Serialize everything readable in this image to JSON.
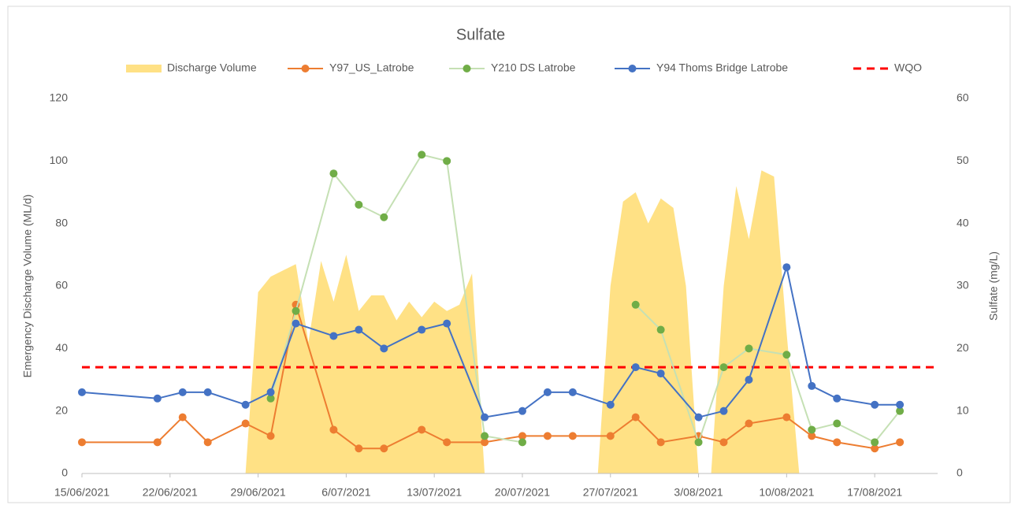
{
  "chart_data": {
    "type": "line",
    "title": "Sulfate",
    "y_label": "Emergency Discharge Volume (ML/d)",
    "y2_label": "Sulfate (mg/L)",
    "x": [
      "2021-06-15",
      "2021-06-21",
      "2021-06-23",
      "2021-06-25",
      "2021-06-28",
      "2021-06-30",
      "2021-07-02",
      "2021-07-05",
      "2021-07-07",
      "2021-07-09",
      "2021-07-12",
      "2021-07-14",
      "2021-07-17",
      "2021-07-20",
      "2021-07-22",
      "2021-07-24",
      "2021-07-27",
      "2021-07-29",
      "2021-07-31",
      "2021-08-03",
      "2021-08-05",
      "2021-08-07",
      "2021-08-10",
      "2021-08-12",
      "2021-08-14",
      "2021-08-17",
      "2021-08-19"
    ],
    "area": {
      "name": "Discharge Volume",
      "color": "#ffd966",
      "axis": "y",
      "x": [
        "2021-06-28",
        "2021-06-29",
        "2021-06-30",
        "2021-07-01",
        "2021-07-02",
        "2021-07-03",
        "2021-07-04",
        "2021-07-05",
        "2021-07-06",
        "2021-07-07",
        "2021-07-08",
        "2021-07-09",
        "2021-07-10",
        "2021-07-11",
        "2021-07-12",
        "2021-07-13",
        "2021-07-14",
        "2021-07-15",
        "2021-07-16",
        "2021-07-17",
        "2021-07-26",
        "2021-07-27",
        "2021-07-28",
        "2021-07-29",
        "2021-07-30",
        "2021-07-31",
        "2021-08-01",
        "2021-08-02",
        "2021-08-03",
        "2021-08-04",
        "2021-08-05",
        "2021-08-06",
        "2021-08-07",
        "2021-08-08",
        "2021-08-09",
        "2021-08-10",
        "2021-08-11"
      ],
      "values": [
        0,
        58,
        63,
        65,
        67,
        42,
        68,
        55,
        70,
        52,
        57,
        57,
        49,
        55,
        50,
        55,
        52,
        54,
        64,
        0,
        0,
        60,
        87,
        90,
        80,
        88,
        85,
        60,
        0,
        0,
        60,
        92,
        75,
        97,
        95,
        45,
        0
      ]
    },
    "series": [
      {
        "name": "Y97_US_Latrobe",
        "color": "#ed7d31",
        "line_color": "#ed7d31",
        "axis": "y2",
        "values": [
          5,
          5,
          9,
          5,
          8,
          6,
          27,
          7,
          4,
          4,
          7,
          5,
          5,
          6,
          6,
          6,
          6,
          9,
          5,
          6,
          5,
          8,
          9,
          6,
          5,
          4,
          5
        ]
      },
      {
        "name": "Y210 DS Latrobe",
        "color": "#70ad47",
        "line_color": "#c5e0b4",
        "axis": "y2",
        "values": [
          null,
          null,
          null,
          null,
          null,
          12,
          26,
          48,
          43,
          41,
          51,
          50,
          6,
          5,
          null,
          null,
          null,
          27,
          23,
          5,
          17,
          20,
          19,
          7,
          8,
          5,
          10
        ]
      },
      {
        "name": "Y94 Thoms Bridge Latrobe",
        "color": "#4472c4",
        "line_color": "#4472c4",
        "axis": "y2",
        "values": [
          13,
          12,
          13,
          13,
          11,
          13,
          24,
          22,
          23,
          20,
          23,
          24,
          9,
          10,
          13,
          13,
          11,
          17,
          16,
          9,
          10,
          15,
          33,
          14,
          12,
          11,
          11
        ]
      }
    ],
    "wqo": {
      "name": "WQO",
      "value": 17,
      "color": "#ff0000",
      "axis": "y2"
    },
    "xlim": [
      "2021-06-15",
      "2021-08-22"
    ],
    "xticks": [
      {
        "value": "2021-06-15",
        "label": "15/06/2021"
      },
      {
        "value": "2021-06-22",
        "label": "22/06/2021"
      },
      {
        "value": "2021-06-29",
        "label": "29/06/2021"
      },
      {
        "value": "2021-07-06",
        "label": "6/07/2021"
      },
      {
        "value": "2021-07-13",
        "label": "13/07/2021"
      },
      {
        "value": "2021-07-20",
        "label": "20/07/2021"
      },
      {
        "value": "2021-07-27",
        "label": "27/07/2021"
      },
      {
        "value": "2021-08-03",
        "label": "3/08/2021"
      },
      {
        "value": "2021-08-10",
        "label": "10/08/2021"
      },
      {
        "value": "2021-08-17",
        "label": "17/08/2021"
      }
    ],
    "ylim": [
      0,
      120
    ],
    "yticks": [
      0,
      20,
      40,
      60,
      80,
      100,
      120
    ],
    "y2lim": [
      0,
      60
    ],
    "y2ticks": [
      0,
      10,
      20,
      30,
      40,
      50,
      60
    ],
    "grid": false,
    "legend": "top"
  }
}
